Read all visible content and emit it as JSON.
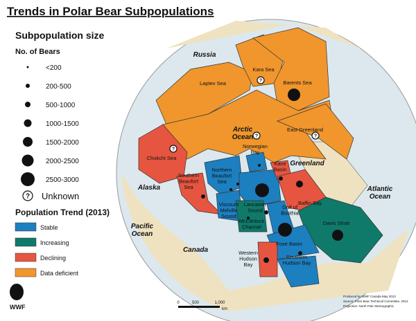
{
  "title": "Trends in Polar Bear Subpopulations",
  "size_legend": {
    "title": "Subpopulation size",
    "subtitle": "No. of Bears",
    "items": [
      "<200",
      "200-500",
      "500-1000",
      "1000-1500",
      "1500-2000",
      "2000-2500",
      "2500-3000"
    ],
    "unknown_symbol": "?",
    "unknown": "Unknown"
  },
  "trend_legend": {
    "title": "Population Trend (2013)",
    "items": [
      "Stable",
      "Increasing",
      "Declining",
      "Data deficient"
    ]
  },
  "labels": [
    [
      "Russia"
    ],
    [
      "Kara Sea"
    ],
    [
      "Barents Sea"
    ],
    [
      "Laptev Sea"
    ],
    [
      "Arctic",
      "Ocean"
    ],
    [
      "East Greenland"
    ],
    [
      "Chukchi Sea"
    ],
    [
      "Norwegian",
      "Bay"
    ],
    [
      "Kane",
      "Basin"
    ],
    [
      "Greenland"
    ],
    [
      "Northern",
      "Beaufort",
      "Sea"
    ],
    [
      "Southern",
      "Beaufort",
      "Sea"
    ],
    [
      "Alaska"
    ],
    [
      "Lancaster",
      "Sound"
    ],
    [
      "Viscount",
      "Melville",
      "Sound"
    ],
    [
      "Gulf of",
      "Boothia"
    ],
    [
      "Baffin Bay"
    ],
    [
      "Atlantic",
      "Ocean"
    ],
    [
      "McClintock",
      "Channel"
    ],
    [
      "Pacific",
      "Ocean"
    ],
    [
      "Canada"
    ],
    [
      "Davis Strait"
    ],
    [
      "Foxe Basin"
    ],
    [
      "Western",
      "Hudson",
      "Bay"
    ],
    [
      "Southern",
      "Hudson Bay"
    ]
  ],
  "scale": [
    "0",
    "500",
    "1,000",
    "km"
  ],
  "logo": "WWF",
  "credits": [
    "Produced by WWF Canada May 2013",
    "Source: Polar Bear Technical Committee, 2013",
    "Projection: North Pole Stereographic"
  ]
}
